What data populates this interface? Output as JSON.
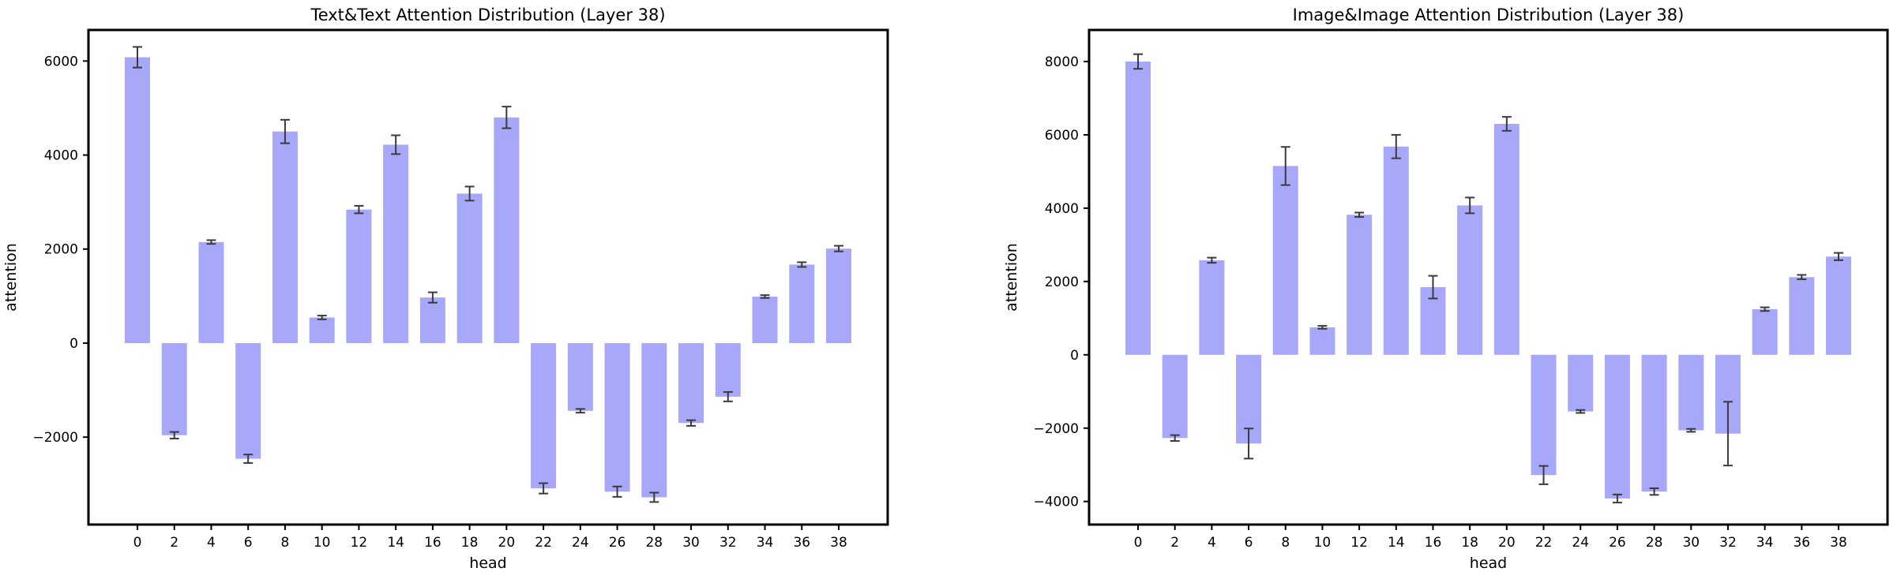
{
  "page": {
    "background": "#ffffff",
    "description": "Two matplotlib-style bar charts of attention values per head with error bars"
  },
  "chart_data": [
    {
      "type": "bar",
      "title": "Text&Text Attention Distribution (Layer 38)",
      "xlabel": "head",
      "ylabel": "attention",
      "categories": [
        0,
        2,
        4,
        6,
        8,
        10,
        12,
        14,
        16,
        18,
        20,
        22,
        24,
        26,
        28,
        30,
        32,
        34,
        36,
        38
      ],
      "values": [
        6080,
        -1960,
        2150,
        -2460,
        4500,
        545,
        2840,
        4220,
        970,
        3180,
        4800,
        -3090,
        -1440,
        -3160,
        -3280,
        -1700,
        -1140,
        990,
        1670,
        2010
      ],
      "errors": [
        220,
        70,
        40,
        90,
        250,
        40,
        80,
        200,
        110,
        150,
        230,
        110,
        40,
        110,
        100,
        60,
        100,
        30,
        50,
        60
      ],
      "ylim": [
        -3860,
        6660
      ],
      "yticks": [
        -2000,
        0,
        2000,
        4000,
        6000
      ],
      "grid": false,
      "legend": "none",
      "bar_color": "#a8a8fa",
      "error_color": "#3a3a3a",
      "axis_color": "#000000"
    },
    {
      "type": "bar",
      "title": "Image&Image Attention Distribution (Layer 38)",
      "xlabel": "head",
      "ylabel": "attention",
      "categories": [
        0,
        2,
        4,
        6,
        8,
        10,
        12,
        14,
        16,
        18,
        20,
        22,
        24,
        26,
        28,
        30,
        32,
        34,
        36,
        38
      ],
      "values": [
        8000,
        -2270,
        2580,
        -2420,
        5150,
        750,
        3820,
        5680,
        1845,
        4075,
        6300,
        -3280,
        -1545,
        -3920,
        -3730,
        -2060,
        -2150,
        1245,
        2120,
        2680
      ],
      "errors": [
        200,
        80,
        70,
        410,
        520,
        40,
        60,
        320,
        310,
        215,
        190,
        250,
        40,
        110,
        90,
        40,
        870,
        50,
        60,
        100
      ],
      "ylim": [
        -4630,
        8860
      ],
      "yticks": [
        -4000,
        -2000,
        0,
        2000,
        4000,
        6000,
        8000
      ],
      "grid": false,
      "legend": "none",
      "bar_color": "#a8a8fa",
      "error_color": "#3a3a3a",
      "axis_color": "#000000"
    }
  ]
}
